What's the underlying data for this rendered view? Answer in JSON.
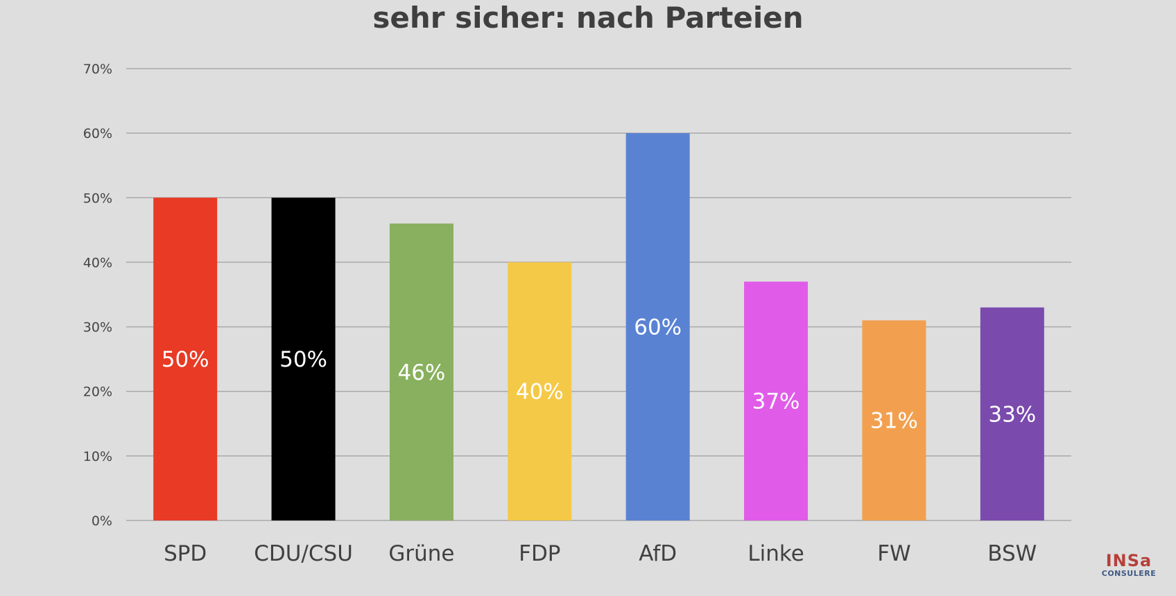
{
  "chart_data": {
    "type": "bar",
    "title": "sehr sicher: nach Parteien",
    "xlabel": "",
    "ylabel": "",
    "ylim": [
      0,
      70
    ],
    "yticks": [
      0,
      10,
      20,
      30,
      40,
      50,
      60,
      70
    ],
    "ytick_labels": [
      "0%",
      "10%",
      "20%",
      "30%",
      "40%",
      "50%",
      "60%",
      "70%"
    ],
    "grid": true,
    "categories": [
      "SPD",
      "CDU/CSU",
      "Grüne",
      "FDP",
      "AfD",
      "Linke",
      "FW",
      "BSW"
    ],
    "values": [
      50,
      50,
      46,
      40,
      60,
      37,
      31,
      33
    ],
    "data_labels": [
      "50%",
      "50%",
      "46%",
      "40%",
      "60%",
      "37%",
      "31%",
      "33%"
    ],
    "colors": [
      "#e83a24",
      "#000000",
      "#89b05e",
      "#f5c948",
      "#5a82d3",
      "#e05ce8",
      "#f2a050",
      "#7a4aad"
    ]
  },
  "logo": {
    "main": "INSa",
    "sub": "CONSULERE"
  }
}
